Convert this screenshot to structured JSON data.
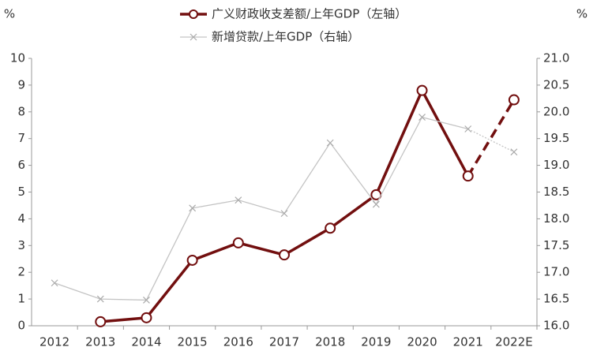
{
  "chart_data": {
    "type": "line",
    "ylabel": "%",
    "y2label": "%",
    "categories": [
      "2012",
      "2013",
      "2014",
      "2015",
      "2016",
      "2017",
      "2018",
      "2019",
      "2020",
      "2021",
      "2022E"
    ],
    "series": [
      {
        "name": "广义财政收支差额/上年GDP（左轴）",
        "color": "#720f0f",
        "marker": "circle",
        "axis": "y",
        "values": [
          null,
          0.15,
          0.3,
          2.45,
          3.1,
          2.65,
          3.65,
          4.9,
          8.8,
          5.6,
          8.45
        ]
      },
      {
        "name": "新增贷款/上年GDP（右轴）",
        "color": "#c4c4c4",
        "marker": "x",
        "axis": "y2",
        "values": [
          16.8,
          16.5,
          16.48,
          18.2,
          18.35,
          18.1,
          19.42,
          18.27,
          19.9,
          19.68,
          19.25
        ]
      }
    ],
    "dashed_last_segment": true,
    "ylim": [
      0,
      10
    ],
    "yticks": [
      0,
      1,
      2,
      3,
      4,
      5,
      6,
      7,
      8,
      9,
      10
    ],
    "y2lim": [
      16,
      21
    ],
    "y2ticks": [
      {
        "value": 16,
        "label": "16.0"
      },
      16.5,
      {
        "value": 17,
        "label": "17.0"
      },
      17.5,
      {
        "value": 18,
        "label": "18.0"
      },
      18.5,
      {
        "value": 19,
        "label": "19.0"
      },
      19.5,
      {
        "value": 20,
        "label": "20.0"
      },
      20.5,
      {
        "value": 21,
        "label": "21.0"
      }
    ],
    "grid": false
  }
}
